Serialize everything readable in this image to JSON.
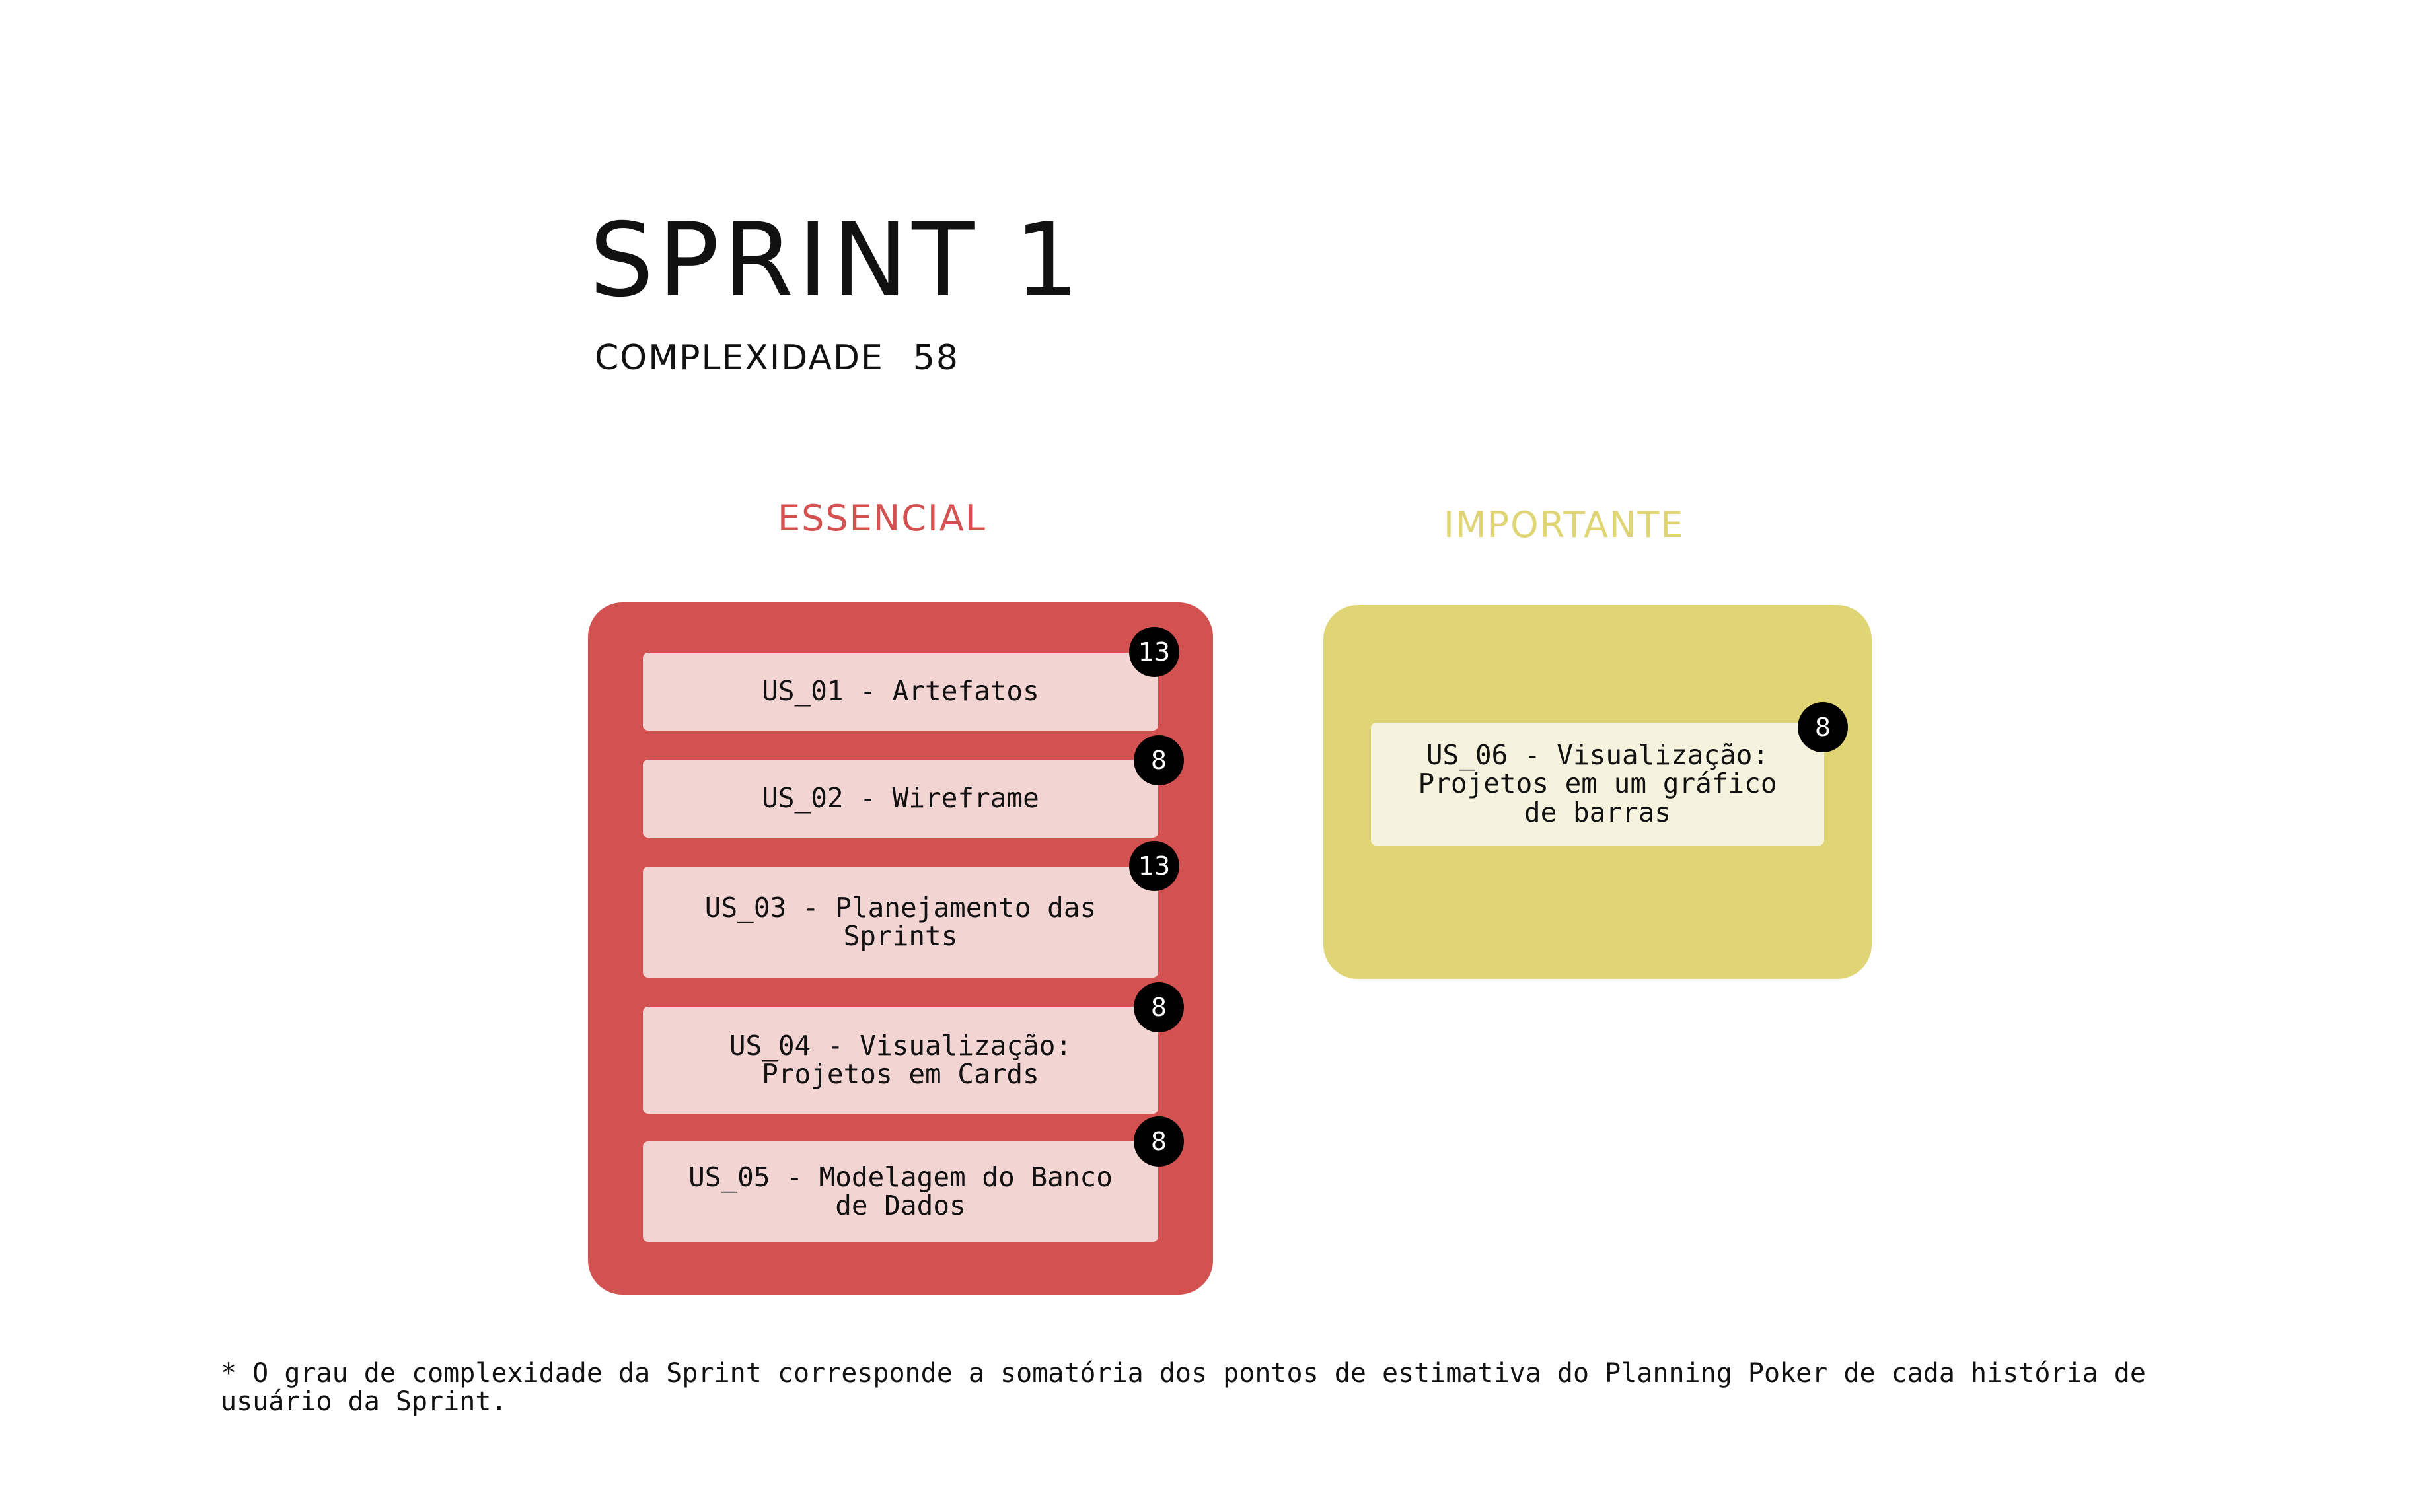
{
  "title": "SPRINT 1",
  "complexity": {
    "label": "COMPLEXIDADE",
    "value": "58"
  },
  "columns": [
    {
      "heading": "ESSENCIAL",
      "color": "#d35151",
      "card_color": "#f2d5d3",
      "stories": [
        {
          "label": "US_01 - Artefatos",
          "points": "13"
        },
        {
          "label": "US_02 - Wireframe",
          "points": "8"
        },
        {
          "label": "US_03 - Planejamento das Sprints",
          "points": "13"
        },
        {
          "label": "US_04 - Visualização: Projetos em Cards",
          "points": "8"
        },
        {
          "label": "US_05 - Modelagem do Banco de Dados",
          "points": "8"
        }
      ]
    },
    {
      "heading": "IMPORTANTE",
      "color": "#e0d575",
      "card_color": "#f5f3dd",
      "stories": [
        {
          "label": "US_06 - Visualização: Projetos em um gráfico de barras",
          "points": "8"
        }
      ]
    }
  ],
  "footnote": "* O grau de complexidade da Sprint corresponde a somatória dos pontos de estimativa do Planning Poker de cada história de usuário da Sprint."
}
